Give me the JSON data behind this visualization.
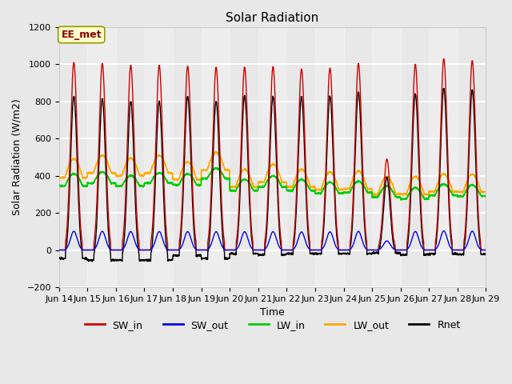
{
  "title": "Solar Radiation",
  "ylabel": "Solar Radiation (W/m2)",
  "xlabel": "Time",
  "ylim": [
    -200,
    1200
  ],
  "n_days": 15,
  "dt_per_hour": 6,
  "SW_in_color": "#cc0000",
  "SW_out_color": "#0000ee",
  "LW_in_color": "#00cc00",
  "LW_out_color": "#ffaa00",
  "Rnet_color": "#000000",
  "plot_bg_color": "#e8e8e8",
  "fig_bg_color": "#e8e8e8",
  "grid_color": "#ffffff",
  "annotation": "EE_met",
  "annotation_color": "#8b0000",
  "annotation_bg": "#ffffcc",
  "annotation_edge": "#999900",
  "x_tick_labels": [
    "Jun 14",
    "Jun 15",
    "Jun 16",
    "Jun 17",
    "Jun 18",
    "Jun 19",
    "Jun 20",
    "Jun 21",
    "Jun 22",
    "Jun 23",
    "Jun 24",
    "Jun 25",
    "Jun 26",
    "Jun 27",
    "Jun 28",
    "Jun 29"
  ],
  "title_fontsize": 11,
  "axis_label_fontsize": 9,
  "tick_fontsize": 8,
  "legend_fontsize": 9,
  "line_width": 1.0,
  "sw_peaks": [
    1010,
    1005,
    995,
    995,
    990,
    985,
    985,
    988,
    975,
    980,
    1005,
    490,
    1000,
    1030,
    1020
  ],
  "lw_in_day_base": [
    410,
    420,
    400,
    415,
    410,
    440,
    380,
    400,
    380,
    365,
    370,
    345,
    335,
    355,
    350
  ],
  "lw_in_night_base": [
    345,
    360,
    345,
    360,
    350,
    385,
    320,
    340,
    320,
    305,
    310,
    285,
    275,
    295,
    290
  ],
  "lw_out_day_base": [
    490,
    510,
    495,
    510,
    475,
    525,
    435,
    462,
    435,
    420,
    425,
    395,
    395,
    410,
    408
  ],
  "lw_out_night_base": [
    390,
    415,
    400,
    415,
    380,
    430,
    340,
    365,
    340,
    325,
    330,
    300,
    300,
    315,
    313
  ],
  "night_rnet": -60,
  "sw_out_ratio": 0.1
}
